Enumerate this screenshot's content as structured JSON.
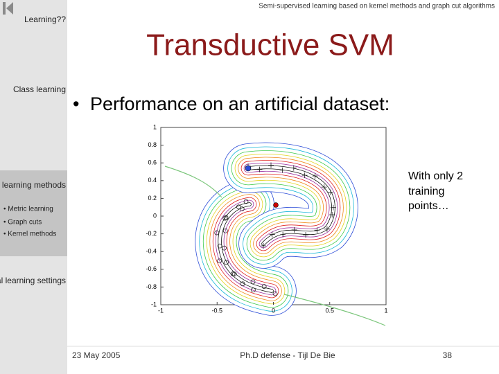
{
  "header": {
    "title": "Semi-supervised learning based on kernel methods and graph cut algorithms"
  },
  "sidebar": {
    "sections": [
      "Learning??",
      "Class learning",
      "Semi-supervised learning methods",
      "Other general learning settings"
    ],
    "subitems": [
      "• Metric learning",
      "• Graph cuts",
      "• Kernel methods"
    ]
  },
  "slide": {
    "title": "Transductive SVM",
    "bullets": [
      "Performance on an artificial dataset:"
    ],
    "note": [
      "With only 2",
      "training",
      "points…"
    ]
  },
  "plot": {
    "xlim": [
      -1,
      1
    ],
    "ylim": [
      -1,
      1
    ],
    "xticks": [
      -1,
      -0.5,
      0,
      0.5,
      1
    ],
    "yticks": [
      1,
      0.8,
      0.6,
      0.4,
      0.2,
      0,
      -0.2,
      -0.4,
      -0.6,
      -0.8,
      -1
    ]
  },
  "footer": {
    "date": "23 May 2005",
    "center": "Ph.D defense - Tijl De Bie",
    "page": 38
  }
}
